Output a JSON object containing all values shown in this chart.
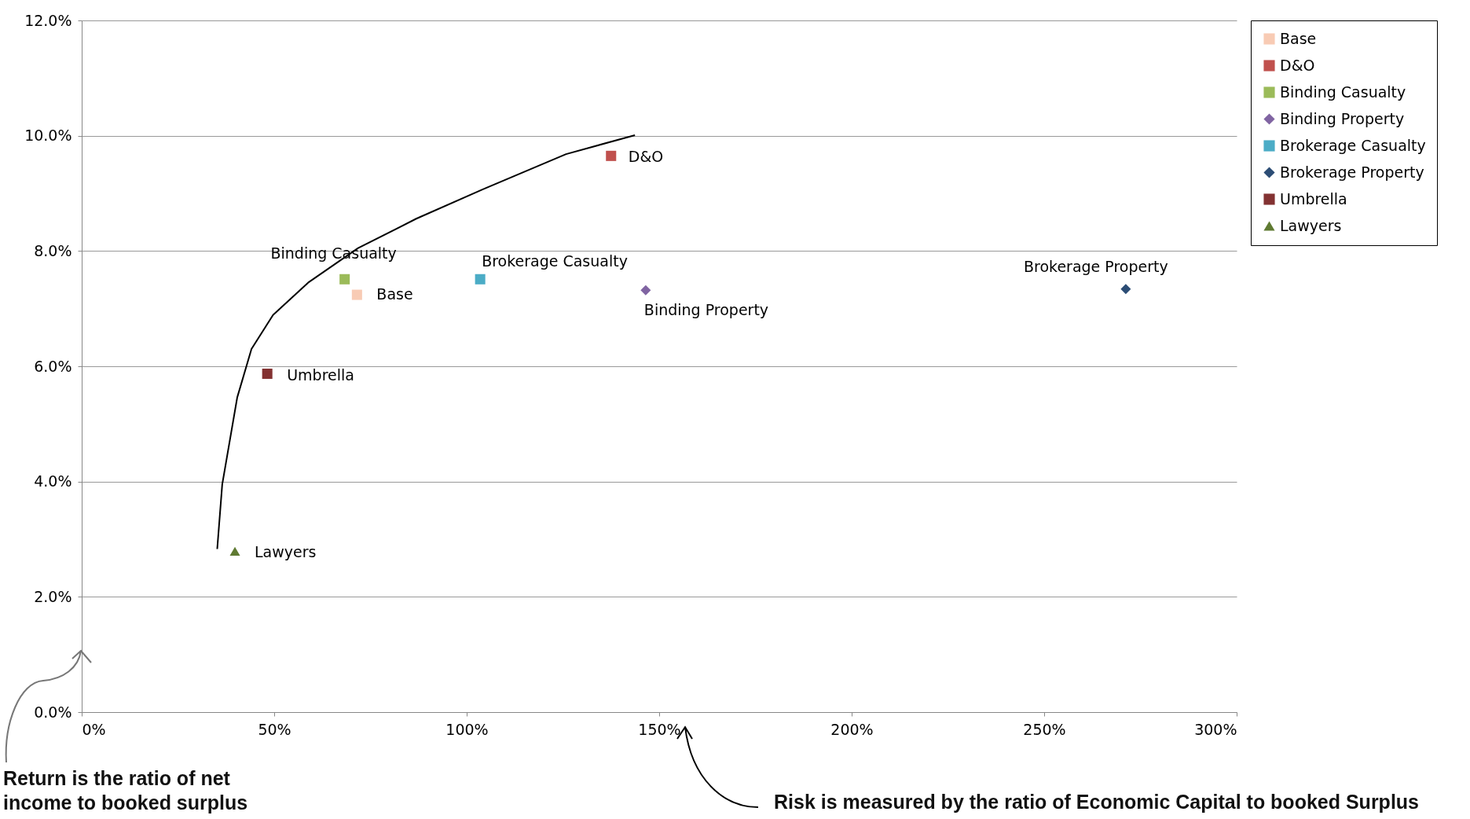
{
  "chart_data": {
    "type": "scatter",
    "xlim": [
      0,
      300
    ],
    "xticks": [
      {
        "value": 0,
        "label": "0%"
      },
      {
        "value": 50,
        "label": "50%"
      },
      {
        "value": 100,
        "label": "100%"
      },
      {
        "value": 150,
        "label": "150%"
      },
      {
        "value": 200,
        "label": "200%"
      },
      {
        "value": 250,
        "label": "250%"
      },
      {
        "value": 300,
        "label": "300%"
      }
    ],
    "ylim": [
      0,
      12
    ],
    "yticks": [
      {
        "value": 0,
        "label": "0.0%"
      },
      {
        "value": 2,
        "label": "2.0%"
      },
      {
        "value": 4,
        "label": "4.0%"
      },
      {
        "value": 6,
        "label": "6.0%"
      },
      {
        "value": 8,
        "label": "8.0%"
      },
      {
        "value": 10,
        "label": "10.0%"
      },
      {
        "value": 12,
        "label": "12.0%"
      }
    ],
    "grid": "y",
    "legend": "right",
    "series": [
      {
        "name": "Base",
        "color": "#f8cbb4",
        "marker": "square",
        "x": [
          71.5
        ],
        "values": [
          7.24
        ]
      },
      {
        "name": "D&O",
        "color": "#c0504d",
        "marker": "square",
        "x": [
          137.5
        ],
        "values": [
          9.65
        ]
      },
      {
        "name": "Binding Casualty",
        "color": "#9bbb59",
        "marker": "square",
        "x": [
          68.3
        ],
        "values": [
          7.51
        ]
      },
      {
        "name": "Binding Property",
        "color": "#8064a2",
        "marker": "diamond",
        "x": [
          146.5
        ],
        "values": [
          7.32
        ]
      },
      {
        "name": "Brokerage Casualty",
        "color": "#4bacc6",
        "marker": "square",
        "x": [
          103.5
        ],
        "values": [
          7.51
        ]
      },
      {
        "name": "Brokerage Property",
        "color": "#2c4d75",
        "marker": "diamond",
        "x": [
          271.2
        ],
        "values": [
          7.34
        ]
      },
      {
        "name": "Umbrella",
        "color": "#833232",
        "marker": "square",
        "x": [
          48.2
        ],
        "values": [
          5.87
        ]
      },
      {
        "name": "Lawyers",
        "color": "#5f7a32",
        "marker": "triangle",
        "x": [
          39.8
        ],
        "values": [
          2.79
        ]
      },
      {
        "type": "line",
        "color": "#000000",
        "marker": "none",
        "x": [
          35.2,
          36.5,
          40.4,
          44.1,
          49.7,
          58.8,
          71.8,
          86.9,
          104.2,
          125.8,
          143.7
        ],
        "values": [
          2.83,
          3.95,
          5.46,
          6.3,
          6.89,
          7.45,
          8.05,
          8.56,
          9.07,
          9.68,
          10.01
        ]
      }
    ],
    "annotations": [
      "Return is the ratio of net income to booked surplus",
      "Risk is measured by the ratio of Economic Capital to booked Surplus"
    ]
  }
}
